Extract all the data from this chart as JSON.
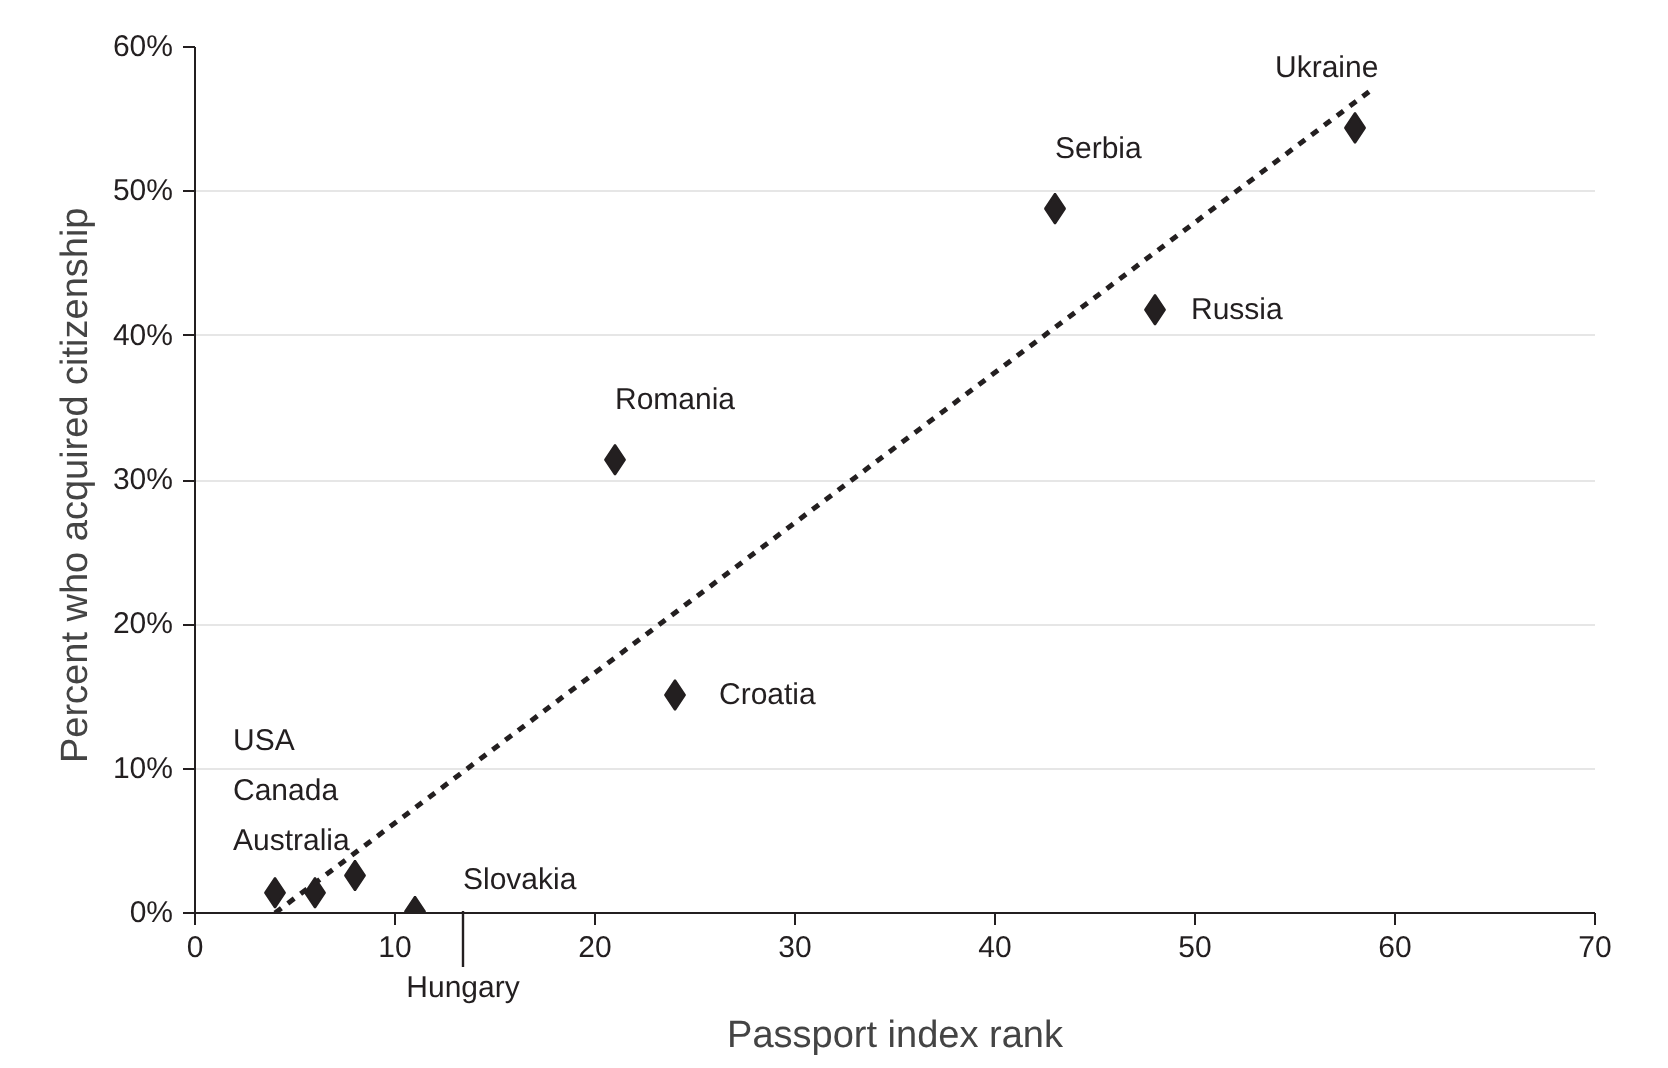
{
  "chart_data": {
    "type": "scatter",
    "xlabel": "Passport index rank",
    "ylabel": "Percent  who acquired citizenship",
    "x": [
      4,
      6,
      8,
      11,
      21,
      24,
      43,
      48,
      58
    ],
    "series": [
      {
        "color": "#231f20",
        "values": [
          1.4,
          1.4,
          2.6,
          0.1,
          31.4,
          15.1,
          48.8,
          41.8,
          54.4
        ],
        "marker": "diamond"
      },
      {
        "type": "line",
        "color": "#231f20",
        "x": [
          4,
          58.7
        ],
        "values": [
          0,
          56.9
        ],
        "line_style": "dashed",
        "marker": "none"
      }
    ],
    "annotations": [
      "USA",
      "Canada",
      "Australia",
      {
        "text": "Slovakia",
        "x": 11,
        "y": 0.1
      },
      {
        "text": "Romania",
        "x": 21,
        "y": 31.4
      },
      {
        "text": "Croatia",
        "x": 24,
        "y": 15.1
      },
      {
        "text": "Serbia",
        "x": 43,
        "y": 48.8
      },
      {
        "text": "Russia",
        "x": 48,
        "y": 41.8
      },
      {
        "text": "Ukraine",
        "x": 58,
        "y": 54.4
      },
      "Hungary"
    ],
    "xlim": [
      0,
      70
    ],
    "xticks": [
      0,
      10,
      20,
      30,
      40,
      50,
      60,
      70
    ],
    "ylim": [
      0,
      60
    ],
    "yticks": [
      {
        "value": 0,
        "label": "0%"
      },
      {
        "value": 10,
        "label": "10%"
      },
      {
        "value": 20,
        "label": "20%"
      },
      {
        "value": 30,
        "label": "30%"
      },
      {
        "value": 40,
        "label": "40%"
      },
      {
        "value": 50,
        "label": "50%"
      },
      {
        "value": 60,
        "label": "60%"
      }
    ],
    "grid": "y"
  }
}
